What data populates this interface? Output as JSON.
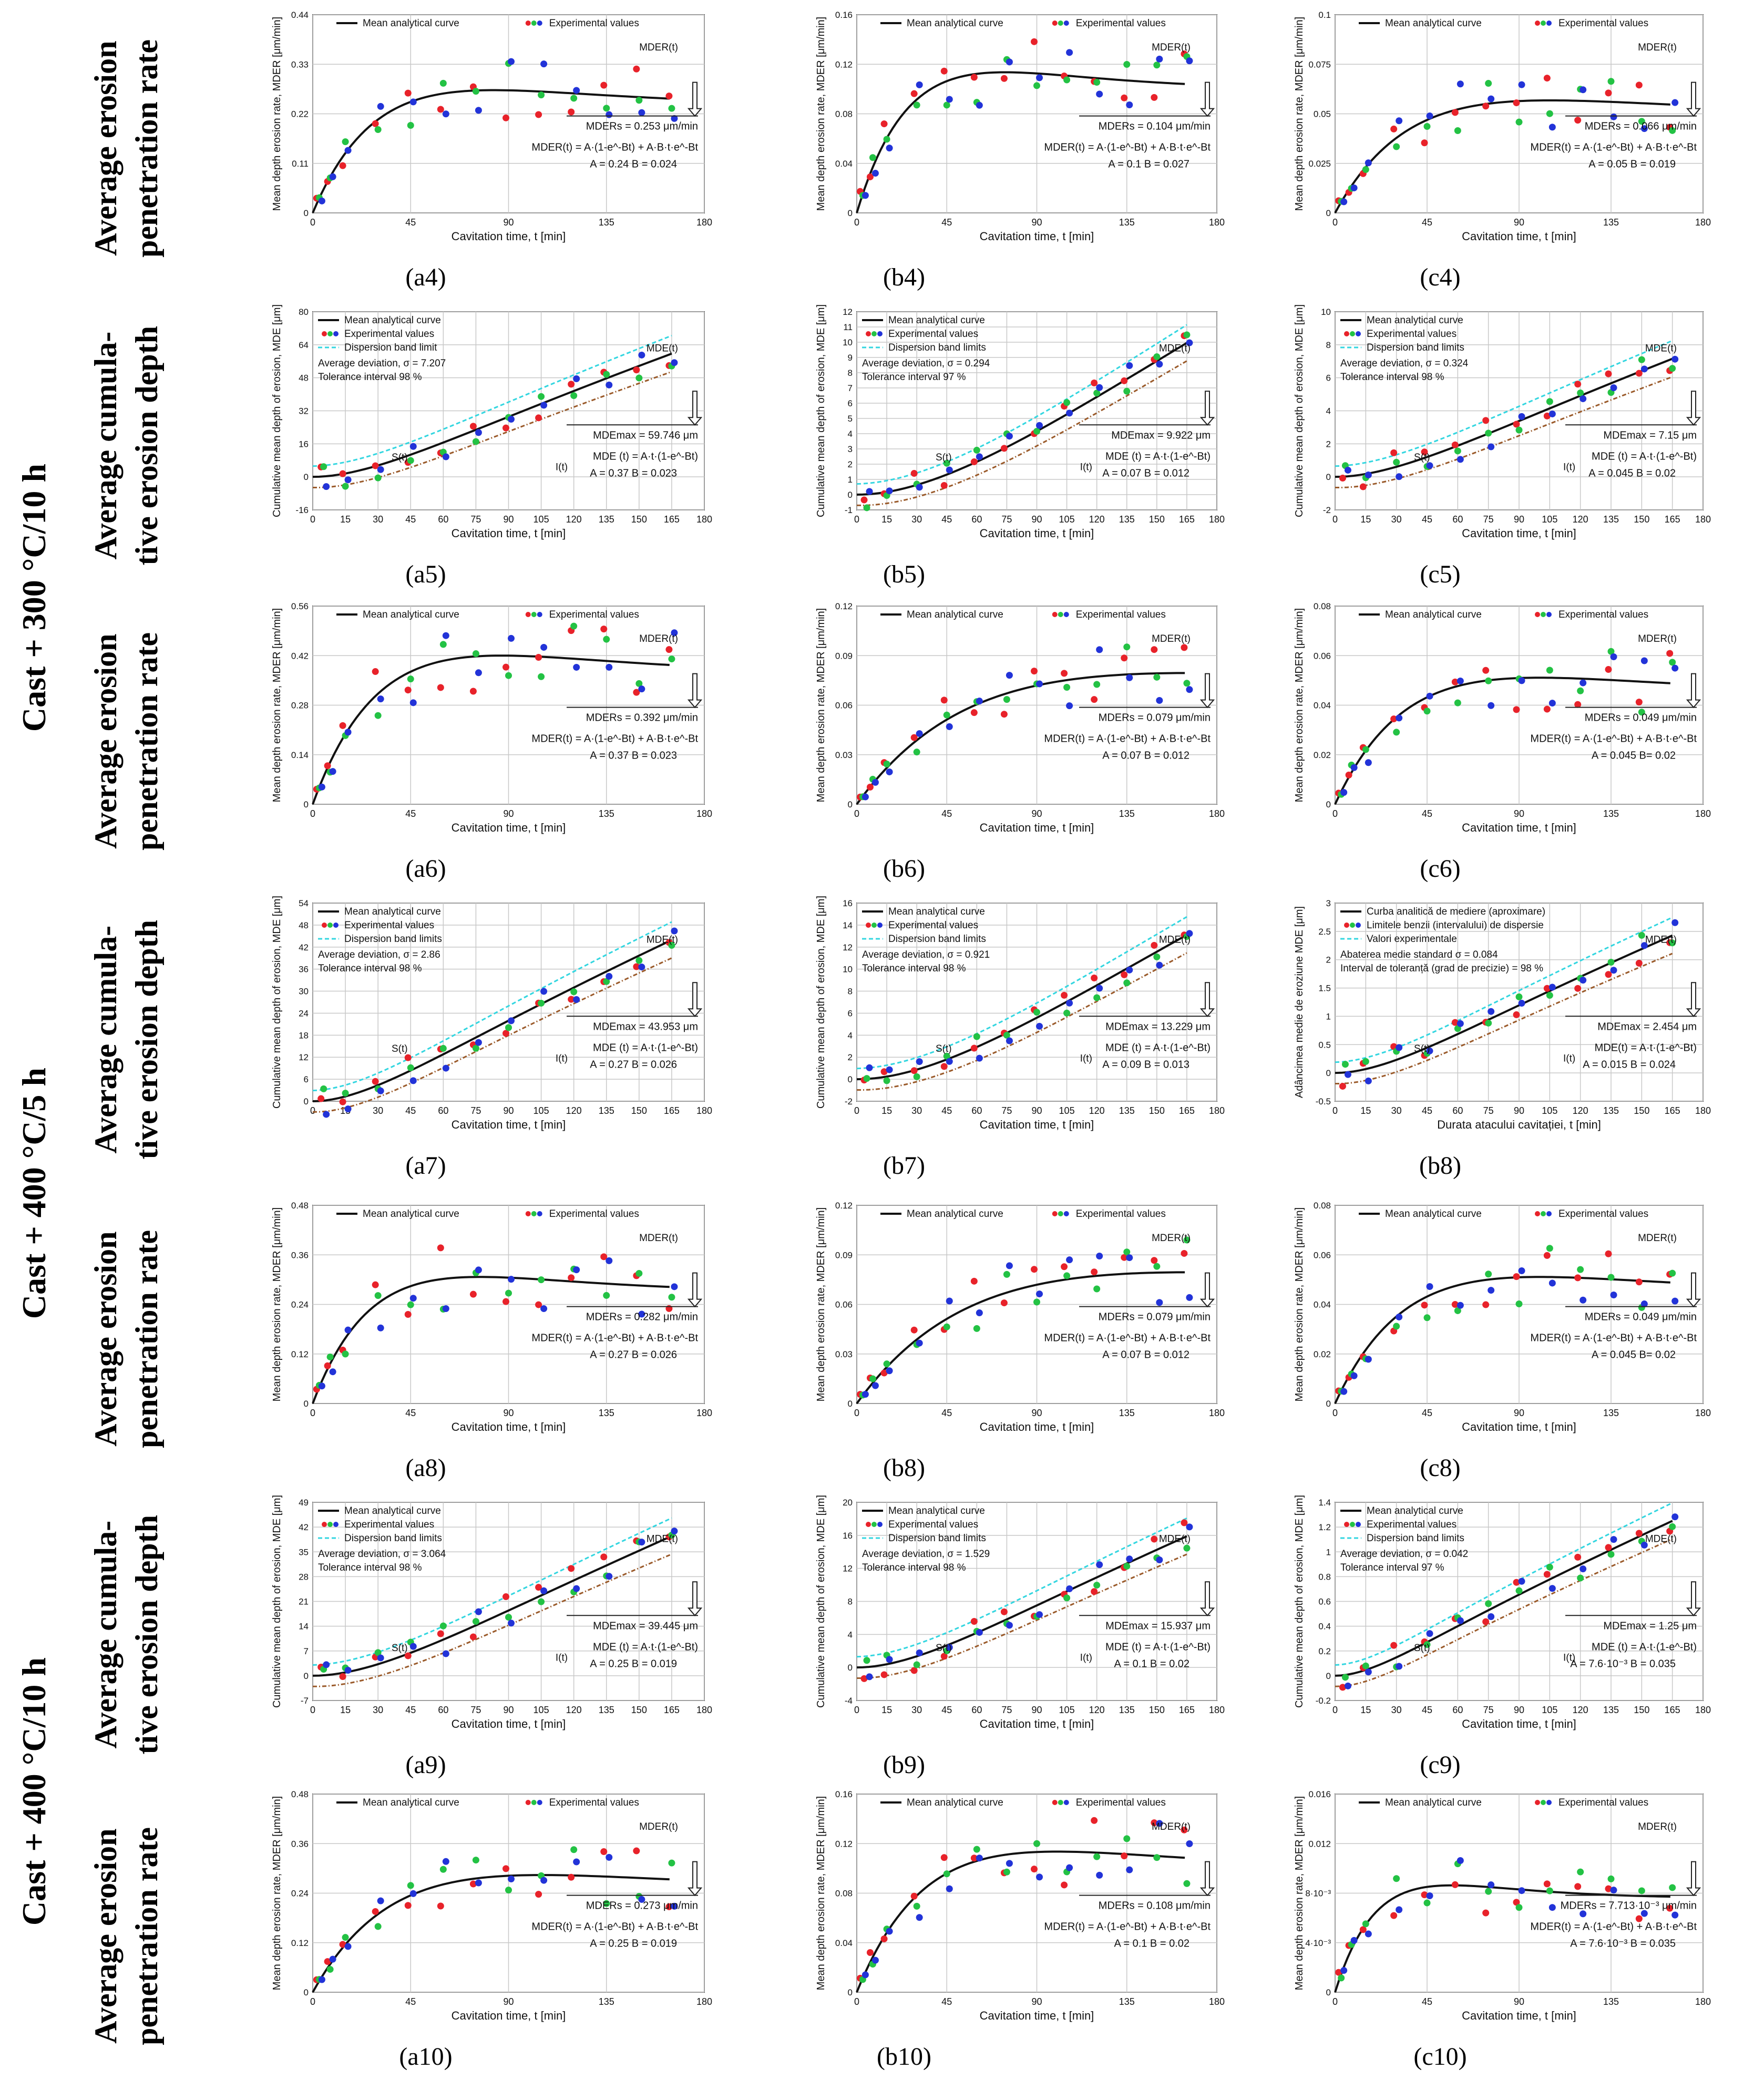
{
  "group_labels": [
    "Cast + 300 °C/10 h",
    "Cast + 400 °C/5 h",
    "Cast + 400 °C/10 h"
  ],
  "row_labels": [
    [
      "Average erosion",
      "penetration rate"
    ],
    [
      "Average cumula-",
      "tive erosion depth"
    ],
    [
      "Average erosion",
      "penetration rate"
    ],
    [
      "Average cumula-",
      "tive erosion depth"
    ],
    [
      "Average erosion",
      "penetration rate"
    ],
    [
      "Average cumula-",
      "tive erosion depth"
    ],
    [
      "Average erosion",
      "penetration rate"
    ]
  ],
  "chart_data": [
    {
      "id": "a4",
      "caption": "(a4)",
      "row": 0,
      "col": 0,
      "type": "mder",
      "ylabel": "Mean depth erosion rate, MDER [μm/min]",
      "xlabel": "Cavitation time, t [min]",
      "ylim": [
        0,
        0.44
      ],
      "yticks": [
        "0",
        "0.11",
        "0.22",
        "0.33",
        "0.44"
      ],
      "A": 0.24,
      "B": 0.024,
      "legend": [
        "Mean analytical curve",
        "Experimental values"
      ],
      "tag": "MDER(t)",
      "eq": "MDER(t) = A·(1-e^-Bt) + A·B·t·e^-Bt",
      "params": "A = 0.24   B = 0.024",
      "result": "MDERs = 0.253 μm/min"
    },
    {
      "id": "b4",
      "caption": "(b4)",
      "row": 0,
      "col": 1,
      "type": "mder",
      "ylabel": "Mean depth erosion rate, MDER [μm/min]",
      "xlabel": "Cavitation time, t [min]",
      "ylim": [
        0,
        0.16
      ],
      "yticks": [
        "0",
        "0.04",
        "0.08",
        "0.12",
        "0.16"
      ],
      "A": 0.1,
      "B": 0.027,
      "legend": [
        "Mean analytical curve",
        "Experimental values"
      ],
      "tag": "MDER(t)",
      "eq": "MDER(t) = A·(1-e^-Bt) + A·B·t·e^-Bt",
      "params": "A = 0.1   B = 0.027",
      "result": "MDERs = 0.104 μm/min"
    },
    {
      "id": "c4",
      "caption": "(c4)",
      "row": 0,
      "col": 2,
      "type": "mder",
      "ylabel": "Mean depth erosion rate, MDER [μm/min]",
      "xlabel": "Cavitation time, t [min]",
      "ylim": [
        0,
        0.1
      ],
      "yticks": [
        "0",
        "0.025",
        "0.05",
        "0.075",
        "0.1"
      ],
      "A": 0.05,
      "B": 0.019,
      "legend": [
        "Mean analytical curve",
        "Experimental values"
      ],
      "tag": "MDER(t)",
      "eq": "MDER(t) = A·(1-e^-Bt) + A·B·t·e^-Bt",
      "params": "A = 0.05   B = 0.019",
      "result": "MDERs = 0.066 μm/min"
    },
    {
      "id": "a5",
      "caption": "(a5)",
      "row": 1,
      "col": 0,
      "type": "mde",
      "ylabel": "Cumulative mean depth of erosion, MDE [μm]",
      "xlabel": "Cavitation time, t [min]",
      "ylim": [
        -16,
        80
      ],
      "yticks": [
        "-16",
        "0",
        "16",
        "32",
        "48",
        "64",
        "80"
      ],
      "A": 0.37,
      "B": 0.023,
      "legend": [
        "Mean analytical curve",
        "Experimental values",
        "Dispersion band limit"
      ],
      "deviation": "Average deviation, σ = 7.207",
      "tolerance": "Tolerance interval  98 %",
      "tag": "MDE(t)",
      "eq": "MDE (t) = A·t·(1-e^-Bt)",
      "params": "A = 0.37   B = 0.023",
      "result": "MDEmax = 59.746 μm"
    },
    {
      "id": "b5",
      "caption": "(b5)",
      "row": 1,
      "col": 1,
      "type": "mde",
      "ylabel": "Cumulative mean depth of erosion, MDE [μm]",
      "xlabel": "Cavitation time, t [min]",
      "ylim": [
        -1,
        12
      ],
      "yticks": [
        "-1",
        "0",
        "1",
        "2",
        "3",
        "4",
        "5",
        "6",
        "7",
        "8",
        "9",
        "10",
        "11",
        "12"
      ],
      "A": 0.07,
      "B": 0.012,
      "legend": [
        "Mean analytical curve",
        "Experimental values",
        "Dispersion band limits"
      ],
      "deviation": "Average deviation, σ = 0.294",
      "tolerance": "Tolerance interval  97 %",
      "tag": "MDE(t)",
      "eq": "MDE (t) = A·t·(1-e^-Bt)",
      "params": "A = 0.07   B = 0.012",
      "result": "MDEmax = 9.922 μm"
    },
    {
      "id": "c5",
      "caption": "(c5)",
      "row": 1,
      "col": 2,
      "type": "mde",
      "ylabel": "Cumulative mean depth of erosion, MDE [μm]",
      "xlabel": "Cavitation time, t [min]",
      "ylim": [
        -2,
        10
      ],
      "yticks": [
        "-2",
        "0",
        "2",
        "4",
        "6",
        "8",
        "10"
      ],
      "A": 0.045,
      "B": 0.02,
      "legend": [
        "Mean analytical curve",
        "Experimental values",
        "Dispersion band limits"
      ],
      "deviation": "Average deviation, σ = 0.324",
      "tolerance": "Tolerance interval  98 %",
      "tag": "MDE(t)",
      "eq": "MDE (t) = A·t·(1-e^-Bt)",
      "params": "A = 0.045   B = 0.02",
      "result": "MDEmax = 7.15 μm"
    },
    {
      "id": "a6",
      "caption": "(a6)",
      "row": 2,
      "col": 0,
      "type": "mder",
      "ylabel": "Mean depth erosion rate, MDER [μm/min]",
      "xlabel": "Cavitation time, t [min]",
      "ylim": [
        0,
        0.56
      ],
      "yticks": [
        "0",
        "0.14",
        "0.28",
        "0.42",
        "0.56"
      ],
      "A": 0.37,
      "B": 0.023,
      "legend": [
        "Mean analytical curve",
        "Experimental values"
      ],
      "tag": "MDER(t)",
      "eq": "MDER(t) = A·(1-e^-Bt) + A·B·t·e^-Bt",
      "params": "A = 0.37   B = 0.023",
      "result": "MDERs = 0.392 μm/min"
    },
    {
      "id": "b6",
      "caption": "(b6)",
      "row": 2,
      "col": 1,
      "type": "mder",
      "ylabel": "Mean depth erosion rate, MDER [μm/min]",
      "xlabel": "Cavitation time, t [min]",
      "ylim": [
        0,
        0.12
      ],
      "yticks": [
        "0",
        "0.03",
        "0.06",
        "0.09",
        "0.12"
      ],
      "A": 0.07,
      "B": 0.012,
      "legend": [
        "Mean analytical curve",
        "Experimental values"
      ],
      "tag": "MDER(t)",
      "eq": "MDER(t) = A·(1-e^-Bt) + A·B·t·e^-Bt",
      "params": "A = 0.07   B = 0.012",
      "result": "MDERs = 0.079 μm/min"
    },
    {
      "id": "c6",
      "caption": "(c6)",
      "row": 2,
      "col": 2,
      "type": "mder",
      "ylabel": "Mean depth erosion rate, MDER [μm/min]",
      "xlabel": "Cavitation time, t [min]",
      "ylim": [
        0,
        0.08
      ],
      "yticks": [
        "0",
        "0.02",
        "0.04",
        "0.06",
        "0.08"
      ],
      "A": 0.045,
      "B": 0.02,
      "legend": [
        "Mean analytical curve",
        "Experimental values"
      ],
      "tag": "MDER(t)",
      "eq": "MDER(t) = A·(1-e^-Bt) + A·B·t·e^-Bt",
      "params": "A = 0.045   B= 0.02",
      "result": "MDERs = 0.049 μm/min"
    },
    {
      "id": "a7",
      "caption": "(a7)",
      "row": 3,
      "col": 0,
      "type": "mde",
      "ylabel": "Cumulative mean depth of erosion, MDE [μm]",
      "xlabel": "Cavitation time, t [min]",
      "ylim": [
        0,
        54
      ],
      "yticks": [
        "0",
        "6",
        "12",
        "18",
        "24",
        "30",
        "36",
        "42",
        "48",
        "54"
      ],
      "A": 0.27,
      "B": 0.026,
      "legend": [
        "Mean analytical curve",
        "Experimental values",
        "Dispersion band limits"
      ],
      "deviation": "Average deviation, σ = 2.86",
      "tolerance": "Tolerance interval  98 %",
      "tag": "MDE(t)",
      "eq": "MDE (t) = A·t·(1-e^-Bt)",
      "params": "A = 0.27   B = 0.026",
      "result": "MDEmax = 43.953 μm"
    },
    {
      "id": "b7",
      "caption": "(b7)",
      "row": 3,
      "col": 1,
      "type": "mde",
      "ylabel": "Cumulative mean depth of erosion, MDE [μm]",
      "xlabel": "Cavitation time, t [min]",
      "ylim": [
        -2,
        16
      ],
      "yticks": [
        "-2",
        "0",
        "2",
        "4",
        "6",
        "8",
        "10",
        "12",
        "14",
        "16"
      ],
      "A": 0.09,
      "B": 0.013,
      "legend": [
        "Mean analytical curve",
        "Experimental values",
        "Dispersion band limits"
      ],
      "deviation": "Average deviation, σ = 0.921",
      "tolerance": "Tolerance interval  98 %",
      "tag": "MDE(t)",
      "eq": "MDE (t) = A·t·(1-e^-Bt)",
      "params": "A = 0.09   B = 0.013",
      "result": "MDEmax = 13.229 μm"
    },
    {
      "id": "b8r",
      "caption": "(b8)",
      "row": 3,
      "col": 2,
      "type": "mde",
      "ylabel": "Adâncimea medie de eroziune MDE [μm]",
      "xlabel": "Durata atacului cavitației, t [min]",
      "ylim": [
        -0.5,
        3
      ],
      "yticks": [
        "-0.5",
        "0",
        "0.5",
        "1",
        "1.5",
        "2",
        "2.5",
        "3"
      ],
      "A": 0.015,
      "B": 0.024,
      "legend": [
        "Curba analitică de mediere (aproximare)",
        "Limitele benzii (intervalului) de dispersie",
        "Valori experimentale"
      ],
      "deviation": "Abaterea medie standard σ = 0.084",
      "tolerance": "Interval de toleranță (grad de precizie) = 98 %",
      "tag": "MDE(t)",
      "eq": "MDE(t) = A·t·(1-e^-Bt)",
      "params": "A = 0.015   B = 0.024",
      "result": "MDEmax = 2.454 μm"
    },
    {
      "id": "a8",
      "caption": "(a8)",
      "row": 4,
      "col": 0,
      "type": "mder",
      "ylabel": "Mean depth erosion rate, MDER [μm/min]",
      "xlabel": "Cavitation time, t [min]",
      "ylim": [
        0,
        0.48
      ],
      "yticks": [
        "0",
        "0.12",
        "0.24",
        "0.36",
        "0.48"
      ],
      "A": 0.27,
      "B": 0.026,
      "legend": [
        "Mean analytical curve",
        "Experimental values"
      ],
      "tag": "MDER(t)",
      "eq": "MDER(t) = A·(1-e^-Bt) + A·B·t·e^-Bt",
      "params": "A = 0.27   B = 0.026",
      "result": "MDERs = 0.282 μm/min"
    },
    {
      "id": "b8",
      "caption": "(b8)",
      "row": 4,
      "col": 1,
      "type": "mder",
      "ylabel": "Mean depth erosion rate, MDER [μm/min]",
      "xlabel": "Cavitation time, t [min]",
      "ylim": [
        0,
        0.12
      ],
      "yticks": [
        "0",
        "0.03",
        "0.06",
        "0.09",
        "0.12"
      ],
      "A": 0.07,
      "B": 0.012,
      "legend": [
        "Mean analytical curve",
        "Experimental values"
      ],
      "tag": "MDER(t)",
      "eq": "MDER(t) = A·(1-e^-Bt) + A·B·t·e^-Bt",
      "params": "A = 0.07   B = 0.012",
      "result": "MDERs = 0.079 μm/min"
    },
    {
      "id": "c8",
      "caption": "(c8)",
      "row": 4,
      "col": 2,
      "type": "mder",
      "ylabel": "Mean depth erosion rate, MDER [μm/min]",
      "xlabel": "Cavitation time, t [min]",
      "ylim": [
        0,
        0.08
      ],
      "yticks": [
        "0",
        "0.02",
        "0.04",
        "0.06",
        "0.08"
      ],
      "A": 0.045,
      "B": 0.02,
      "legend": [
        "Mean analytical curve",
        "Experimental values"
      ],
      "tag": "MDER(t)",
      "eq": "MDER(t) = A·(1-e^-Bt) + A·B·t·e^-Bt",
      "params": "A = 0.045   B= 0.02",
      "result": "MDERs = 0.049 μm/min"
    },
    {
      "id": "a9",
      "caption": "(a9)",
      "row": 5,
      "col": 0,
      "type": "mde",
      "ylabel": "Cumulative mean depth of erosion, MDE [μm]",
      "xlabel": "Cavitation time, t [min]",
      "ylim": [
        -7,
        49
      ],
      "yticks": [
        "-7",
        "0",
        "7",
        "14",
        "21",
        "28",
        "35",
        "42",
        "49"
      ],
      "A": 0.25,
      "B": 0.019,
      "legend": [
        "Mean analytical curve",
        "Experimental values",
        "Dispersion band limits"
      ],
      "deviation": "Average deviation, σ = 3.064",
      "tolerance": "Tolerance interval  98 %",
      "tag": "MDE(t)",
      "eq": "MDE (t) = A·t·(1-e^-Bt)",
      "params": "A = 0.25   B = 0.019",
      "result": "MDEmax = 39.445 μm"
    },
    {
      "id": "b9",
      "caption": "(b9)",
      "row": 5,
      "col": 1,
      "type": "mde",
      "ylabel": "Cumulative mean depth of erosion, MDE [μm]",
      "xlabel": "Cavitation time, t [min]",
      "ylim": [
        -4,
        20
      ],
      "yticks": [
        "-4",
        "0",
        "4",
        "8",
        "12",
        "16",
        "20"
      ],
      "A": 0.1,
      "B": 0.02,
      "legend": [
        "Mean analytical curve",
        "Experimental values",
        "Dispersion band limits"
      ],
      "deviation": "Average deviation, σ = 1.529",
      "tolerance": "Tolerance interval  98 %",
      "tag": "MDE(t)",
      "eq": "MDE (t) = A·t·(1-e^-Bt)",
      "params": "A = 0.1   B = 0.02",
      "result": "MDEmax = 15.937 μm"
    },
    {
      "id": "c9",
      "caption": "(c9)",
      "row": 5,
      "col": 2,
      "type": "mde",
      "ylabel": "Cumulative mean depth of erosion, MDE [μm]",
      "xlabel": "Cavitation time, t [min]",
      "ylim": [
        -0.2,
        1.4
      ],
      "yticks": [
        "-0.2",
        "0",
        "0.2",
        "0.4",
        "0.6",
        "0.8",
        "1",
        "1.2",
        "1.4"
      ],
      "A": 0.0076,
      "B": 0.035,
      "legend": [
        "Mean analytical curve",
        "Experimental values",
        "Dispersion band limits"
      ],
      "deviation": "Average deviation, σ = 0.042",
      "tolerance": "Tolerance interval  97 %",
      "tag": "MDE(t)",
      "eq": "MDE (t) = A·t·(1-e^-Bt)",
      "params": "A = 7.6·10⁻³   B = 0.035",
      "result": "MDEmax = 1.25 μm"
    },
    {
      "id": "a10",
      "caption": "(a10)",
      "row": 6,
      "col": 0,
      "type": "mder",
      "ylabel": "Mean depth erosion rate, MDER [μm/min]",
      "xlabel": "Cavitation time, t [min]",
      "ylim": [
        0,
        0.48
      ],
      "yticks": [
        "0",
        "0.12",
        "0.24",
        "0.36",
        "0.48"
      ],
      "A": 0.25,
      "B": 0.019,
      "legend": [
        "Mean analytical curve",
        "Experimental values"
      ],
      "tag": "MDER(t)",
      "eq": "MDER(t) = A·(1-e^-Bt) + A·B·t·e^-Bt",
      "params": "A = 0.25   B = 0.019",
      "result": "MDERs = 0.273 μm/min"
    },
    {
      "id": "b10",
      "caption": "(b10)",
      "row": 6,
      "col": 1,
      "type": "mder",
      "ylabel": "Mean depth erosion rate, MDER [μm/min]",
      "xlabel": "Cavitation time, t [min]",
      "ylim": [
        0,
        0.16
      ],
      "yticks": [
        "0",
        "0.04",
        "0.08",
        "0.12",
        "0.16"
      ],
      "A": 0.1,
      "B": 0.02,
      "legend": [
        "Mean analytical curve",
        "Experimental values"
      ],
      "tag": "MDER(t)",
      "eq": "MDER(t) = A·(1-e^-Bt) + A·B·t·e^-Bt",
      "params": "A = 0.1   B = 0.02",
      "result": "MDERs = 0.108 μm/min"
    },
    {
      "id": "c10",
      "caption": "(c10)",
      "row": 6,
      "col": 2,
      "type": "mder",
      "ylabel": "Mean depth erosion rate, MDER [μm/min]",
      "xlabel": "Cavitation time, t [min]",
      "ylim": [
        0,
        0.016
      ],
      "yticks": [
        "0",
        "4·10⁻³",
        "8·10⁻³",
        "0.012",
        "0.016"
      ],
      "A": 0.0076,
      "B": 0.035,
      "legend": [
        "Mean analytical curve",
        "Experimental values"
      ],
      "tag": "MDER(t)",
      "eq": "MDER(t) = A·(1-e^-Bt) + A·B·t·e^-Bt",
      "params": "A = 7.6·10⁻³   B = 0.035",
      "result": "MDERs = 7.713·10⁻³ μm/min"
    }
  ],
  "colors": {
    "curve": "#111111",
    "band": "#33d6e0",
    "lower": "#9a5a2a",
    "grid": "#c8c8c8",
    "red": "#e8222a",
    "green": "#23c244",
    "blue": "#2233d8"
  }
}
